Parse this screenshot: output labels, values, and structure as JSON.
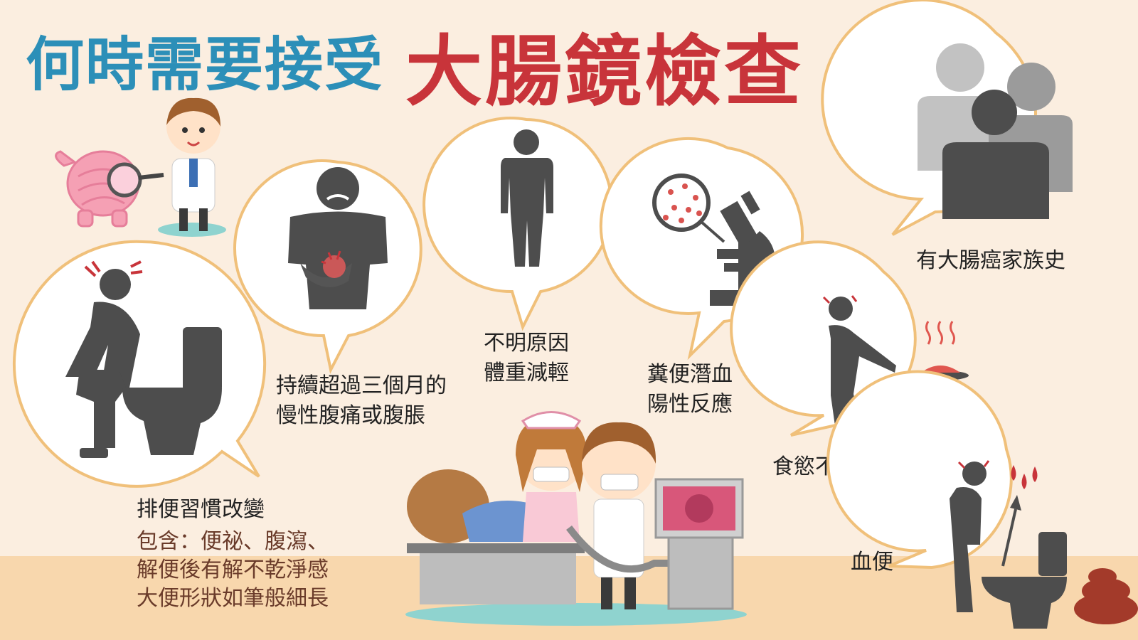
{
  "title": {
    "part1": "何時需要接受",
    "part2": "大腸鏡檢查"
  },
  "items": [
    {
      "id": "bowel-habit",
      "label": "排便習慣改變",
      "details": [
        "包含：便祕、腹瀉、",
        "解便後有解不乾淨感",
        "大便形狀如筆般細長"
      ]
    },
    {
      "id": "abdominal-pain",
      "lines": [
        "持續超過三個月的",
        "慢性腹痛或腹脹"
      ]
    },
    {
      "id": "weight-loss",
      "lines": [
        "不明原因",
        "體重減輕"
      ]
    },
    {
      "id": "occult-blood",
      "lines": [
        "糞便潛血",
        "陽性反應"
      ]
    },
    {
      "id": "family-history",
      "lines": [
        "有大腸癌家族史"
      ]
    },
    {
      "id": "appetite",
      "lines": [
        "食慾不振"
      ]
    },
    {
      "id": "bloody-stool",
      "lines": [
        "血便"
      ]
    }
  ],
  "colors": {
    "background": "#fbeee0",
    "floor": "#f8d7ad",
    "bubble_border": "#f0c07a",
    "icon": "#4d4d4d",
    "title_blue": "#2c8fb8",
    "title_red": "#c8343a"
  }
}
